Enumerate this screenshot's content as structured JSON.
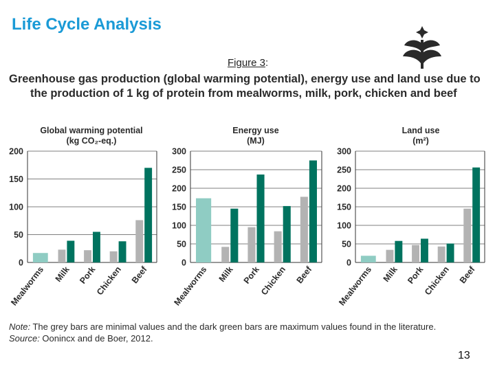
{
  "slide": {
    "title": "Life Cycle Analysis",
    "figure_label": "Figure 3",
    "figure_label_suffix": ":",
    "headline_line1": "Greenhouse gas production (global warming potential), energy use and land use due to",
    "headline_line2": "the production of 1 kg of protein from mealworms, milk, pork, chicken and beef",
    "note_prefix": "Note:",
    "note_text": " The grey bars are minimal values and the dark green bars are maximum values found in the literature.",
    "source_prefix": "Source:",
    "source_text": " Oonincx and de Boer, 2012.",
    "page_number": "13"
  },
  "colors": {
    "min": "#b3b3b3",
    "max": "#00735f",
    "mealworm": "#8fccc3",
    "title": "#1a9ad6",
    "logo": "#2a2a2a"
  },
  "chart_data": [
    {
      "type": "bar",
      "title_line1": "Global warming potential",
      "title_line2": "(kg CO₂-eq.)",
      "categories": [
        "Mealworms",
        "Milk",
        "Pork",
        "Chicken",
        "Beef"
      ],
      "ylim": [
        0,
        200
      ],
      "yticks": [
        0,
        50,
        100,
        150,
        200
      ],
      "series": [
        {
          "name": "min",
          "values": [
            17,
            23,
            22,
            20,
            76
          ]
        },
        {
          "name": "max",
          "values": [
            null,
            39,
            55,
            38,
            170
          ]
        }
      ]
    },
    {
      "type": "bar",
      "title_line1": "Energy use",
      "title_line2": "(MJ)",
      "categories": [
        "Mealworms",
        "Milk",
        "Pork",
        "Chicken",
        "Beef"
      ],
      "ylim": [
        0,
        300
      ],
      "yticks": [
        0,
        50,
        100,
        150,
        200,
        250,
        300
      ],
      "series": [
        {
          "name": "min",
          "values": [
            173,
            42,
            95,
            84,
            177
          ]
        },
        {
          "name": "max",
          "values": [
            null,
            145,
            237,
            152,
            275
          ]
        }
      ]
    },
    {
      "type": "bar",
      "title_line1": "Land use",
      "title_line2": "(m²)",
      "categories": [
        "Mealworms",
        "Milk",
        "Pork",
        "Chicken",
        "Beef"
      ],
      "ylim": [
        0,
        300
      ],
      "yticks": [
        0,
        50,
        100,
        150,
        200,
        250,
        300
      ],
      "series": [
        {
          "name": "min",
          "values": [
            18,
            34,
            47,
            43,
            145
          ]
        },
        {
          "name": "max",
          "values": [
            null,
            58,
            64,
            51,
            256
          ]
        }
      ]
    }
  ]
}
